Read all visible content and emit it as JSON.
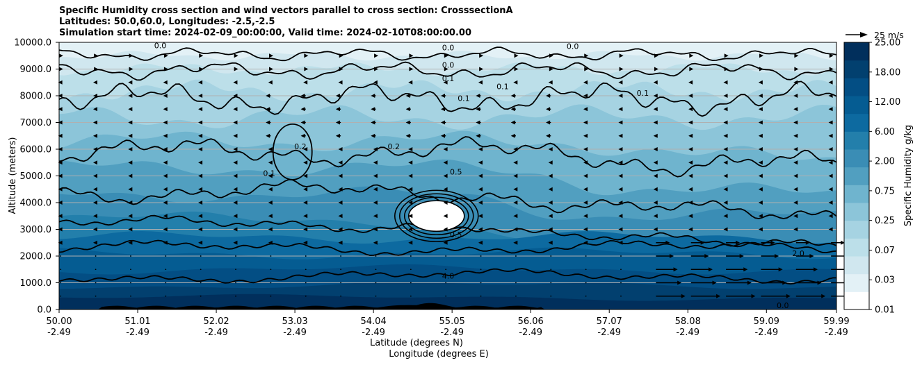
{
  "chart_data": {
    "type": "contour_cross_section",
    "title_lines": [
      "Specific Humidity cross section and wind vectors parallel to cross section: CrosssectionA",
      "Latitudes: 50.0,60.0, Longitudes: -2.5,-2.5",
      "Simulation start time: 2024-02-09_00:00:00, Valid time: 2024-02-10T08:00:00.00"
    ],
    "ylabel": "Altitude (meters)",
    "xlabel_lines": [
      "Latitude (degrees N)",
      "Longitude (degrees E)"
    ],
    "ylim": [
      0,
      10000
    ],
    "xlim": [
      50.0,
      59.99
    ],
    "y_ticks": [
      "0.0",
      "1000.0",
      "2000.0",
      "3000.0",
      "4000.0",
      "5000.0",
      "6000.0",
      "7000.0",
      "8000.0",
      "9000.0",
      "10000.0"
    ],
    "x_ticks": [
      {
        "lat": "50.00",
        "lon": "-2.49"
      },
      {
        "lat": "51.01",
        "lon": "-2.49"
      },
      {
        "lat": "52.02",
        "lon": "-2.49"
      },
      {
        "lat": "53.03",
        "lon": "-2.49"
      },
      {
        "lat": "54.04",
        "lon": "-2.49"
      },
      {
        "lat": "55.05",
        "lon": "-2.49"
      },
      {
        "lat": "56.06",
        "lon": "-2.49"
      },
      {
        "lat": "57.07",
        "lon": "-2.49"
      },
      {
        "lat": "58.08",
        "lon": "-2.49"
      },
      {
        "lat": "59.09",
        "lon": "-2.49"
      },
      {
        "lat": "59.99",
        "lon": "-2.49"
      }
    ],
    "colorbar": {
      "label": "Specific Humidity g/kg",
      "levels": [
        "0.01",
        "0.03",
        "0.07",
        "0.25",
        "0.75",
        "2.00",
        "6.00",
        "12.00",
        "18.00",
        "25.00"
      ]
    },
    "quiver_key": {
      "label": "25 m/s"
    },
    "contour_labels": [
      "0.0",
      "0.0",
      "0.0",
      "0.0",
      "0.1",
      "0.1",
      "0.1",
      "0.1",
      "0.2",
      "0.2",
      "0.1",
      "0.5",
      "0.5",
      "4.0",
      "2.0",
      "0.0"
    ],
    "grid": "horizontal"
  },
  "colors": {
    "levels": [
      "#ffffff",
      "#e3f1f6",
      "#d0e7ef",
      "#bcdfe9",
      "#a6d3e2",
      "#8cc5d9",
      "#6fb4ce",
      "#519fc0",
      "#3a8db5",
      "#237fab",
      "#0d6aa0",
      "#055c92",
      "#034e84",
      "#02406f",
      "#012f5c",
      "#001e4a"
    ]
  }
}
